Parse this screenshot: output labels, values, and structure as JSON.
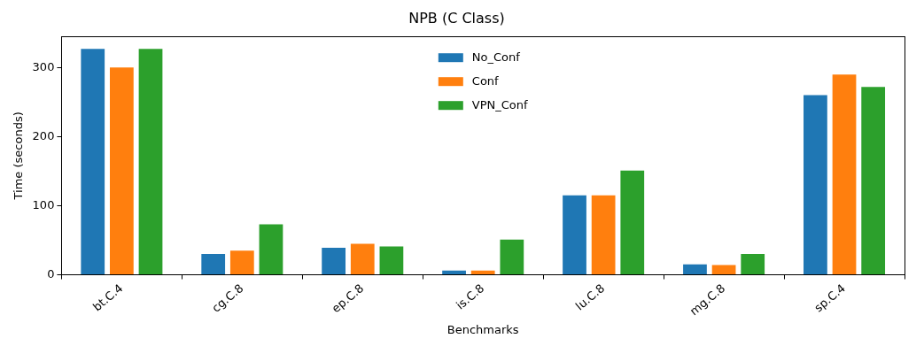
{
  "chart_data": {
    "type": "bar",
    "title": "NPB (C Class)",
    "x_label": "Benchmarks",
    "y_label": "Time (seconds)",
    "categories": [
      "bt.C.4",
      "cg.C.8",
      "ep.C.8",
      "is.C.8",
      "lu.C.8",
      "mg.C.8",
      "sp.C.4"
    ],
    "series": [
      {
        "name": "No_Conf",
        "color": "#1f77b4",
        "values": [
          327,
          30,
          39,
          6,
          115,
          15,
          260
        ]
      },
      {
        "name": "Conf",
        "color": "#ff7f0e",
        "values": [
          300,
          35,
          45,
          6,
          115,
          14,
          290
        ]
      },
      {
        "name": "VPN_Conf",
        "color": "#2ca02c",
        "values": [
          327,
          73,
          41,
          51,
          151,
          30,
          272
        ]
      }
    ],
    "ylim": [
      0,
      345
    ],
    "yticks": [
      0,
      100,
      200,
      300
    ],
    "grid": false,
    "legend": "upper center"
  }
}
